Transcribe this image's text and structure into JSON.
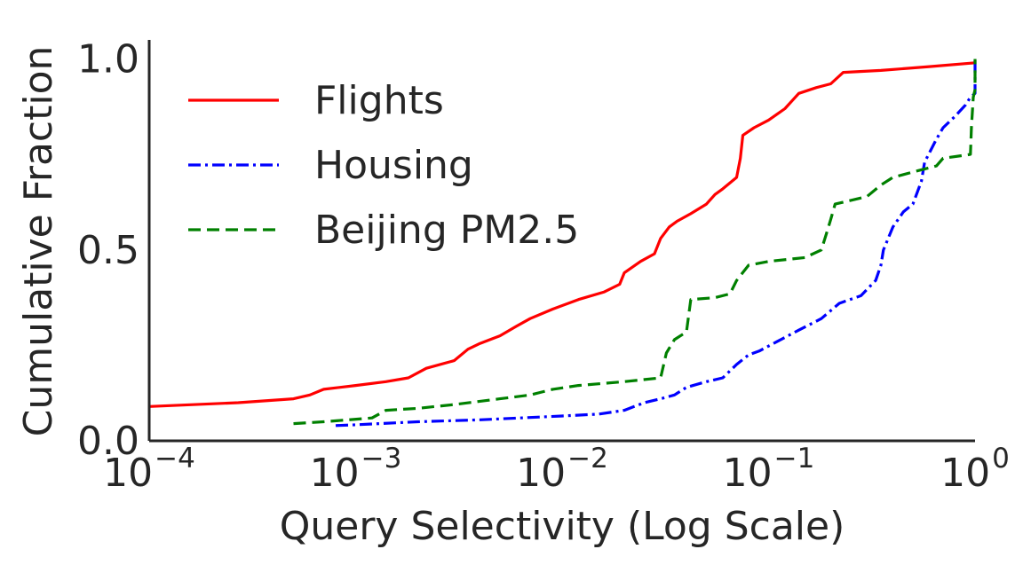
{
  "chart_data": {
    "type": "line",
    "title": "",
    "xlabel": "Query Selectivity (Log Scale)",
    "ylabel": "Cumulative Fraction",
    "xscale": "log",
    "xlim": [
      0.0001,
      1
    ],
    "ylim": [
      0,
      1.05
    ],
    "x_ticks": [
      {
        "value": 0.0001,
        "base": "10",
        "exp": "−4"
      },
      {
        "value": 0.001,
        "base": "10",
        "exp": "−3"
      },
      {
        "value": 0.01,
        "base": "10",
        "exp": "−2"
      },
      {
        "value": 0.1,
        "base": "10",
        "exp": "−1"
      },
      {
        "value": 1,
        "base": "10",
        "exp": "0"
      }
    ],
    "y_ticks": [
      {
        "value": 0.0,
        "label": "0.0"
      },
      {
        "value": 0.5,
        "label": "0.5"
      },
      {
        "value": 1.0,
        "label": "1.0"
      }
    ],
    "grid": false,
    "legend_position": "top-left",
    "series": [
      {
        "name": "Flights",
        "color": "#ff0000",
        "linestyle": "solid",
        "points": [
          [
            0.0001,
            0.09
          ],
          [
            0.00027,
            0.1
          ],
          [
            0.0005,
            0.11
          ],
          [
            0.0006,
            0.12
          ],
          [
            0.0007,
            0.135
          ],
          [
            0.001,
            0.145
          ],
          [
            0.0014,
            0.155
          ],
          [
            0.0018,
            0.165
          ],
          [
            0.0022,
            0.19
          ],
          [
            0.003,
            0.21
          ],
          [
            0.0035,
            0.24
          ],
          [
            0.004,
            0.255
          ],
          [
            0.005,
            0.275
          ],
          [
            0.006,
            0.3
          ],
          [
            0.007,
            0.32
          ],
          [
            0.009,
            0.345
          ],
          [
            0.012,
            0.37
          ],
          [
            0.016,
            0.39
          ],
          [
            0.019,
            0.41
          ],
          [
            0.02,
            0.44
          ],
          [
            0.024,
            0.47
          ],
          [
            0.028,
            0.49
          ],
          [
            0.03,
            0.53
          ],
          [
            0.033,
            0.56
          ],
          [
            0.036,
            0.575
          ],
          [
            0.042,
            0.595
          ],
          [
            0.05,
            0.62
          ],
          [
            0.055,
            0.645
          ],
          [
            0.06,
            0.66
          ],
          [
            0.07,
            0.69
          ],
          [
            0.073,
            0.74
          ],
          [
            0.075,
            0.8
          ],
          [
            0.085,
            0.82
          ],
          [
            0.1,
            0.84
          ],
          [
            0.12,
            0.87
          ],
          [
            0.14,
            0.91
          ],
          [
            0.17,
            0.925
          ],
          [
            0.2,
            0.935
          ],
          [
            0.23,
            0.965
          ],
          [
            0.35,
            0.97
          ],
          [
            0.6,
            0.98
          ],
          [
            1.0,
            0.99
          ]
        ]
      },
      {
        "name": "Housing",
        "color": "#0000ff",
        "linestyle": "dashdot",
        "points": [
          [
            0.0008,
            0.04
          ],
          [
            0.001,
            0.042
          ],
          [
            0.002,
            0.05
          ],
          [
            0.004,
            0.055
          ],
          [
            0.01,
            0.065
          ],
          [
            0.015,
            0.07
          ],
          [
            0.02,
            0.08
          ],
          [
            0.025,
            0.1
          ],
          [
            0.03,
            0.11
          ],
          [
            0.035,
            0.12
          ],
          [
            0.04,
            0.14
          ],
          [
            0.05,
            0.155
          ],
          [
            0.06,
            0.165
          ],
          [
            0.07,
            0.2
          ],
          [
            0.08,
            0.225
          ],
          [
            0.09,
            0.235
          ],
          [
            0.11,
            0.26
          ],
          [
            0.14,
            0.29
          ],
          [
            0.18,
            0.32
          ],
          [
            0.22,
            0.36
          ],
          [
            0.28,
            0.38
          ],
          [
            0.33,
            0.42
          ],
          [
            0.35,
            0.46
          ],
          [
            0.36,
            0.5
          ],
          [
            0.4,
            0.56
          ],
          [
            0.45,
            0.6
          ],
          [
            0.5,
            0.62
          ],
          [
            0.55,
            0.68
          ],
          [
            0.57,
            0.73
          ],
          [
            0.65,
            0.79
          ],
          [
            0.7,
            0.82
          ],
          [
            0.8,
            0.85
          ],
          [
            0.9,
            0.88
          ],
          [
            0.95,
            0.9
          ],
          [
            1.0,
            0.91
          ],
          [
            1.0,
            1.0
          ]
        ]
      },
      {
        "name": "Beijing PM2.5",
        "color": "#008000",
        "linestyle": "dashed",
        "points": [
          [
            0.0005,
            0.045
          ],
          [
            0.0007,
            0.05
          ],
          [
            0.0012,
            0.06
          ],
          [
            0.0014,
            0.08
          ],
          [
            0.002,
            0.085
          ],
          [
            0.003,
            0.095
          ],
          [
            0.005,
            0.11
          ],
          [
            0.007,
            0.12
          ],
          [
            0.009,
            0.135
          ],
          [
            0.012,
            0.145
          ],
          [
            0.02,
            0.155
          ],
          [
            0.03,
            0.165
          ],
          [
            0.032,
            0.23
          ],
          [
            0.035,
            0.265
          ],
          [
            0.04,
            0.285
          ],
          [
            0.042,
            0.37
          ],
          [
            0.055,
            0.375
          ],
          [
            0.065,
            0.385
          ],
          [
            0.07,
            0.42
          ],
          [
            0.08,
            0.46
          ],
          [
            0.1,
            0.47
          ],
          [
            0.15,
            0.48
          ],
          [
            0.18,
            0.5
          ],
          [
            0.19,
            0.54
          ],
          [
            0.2,
            0.58
          ],
          [
            0.21,
            0.62
          ],
          [
            0.3,
            0.64
          ],
          [
            0.35,
            0.67
          ],
          [
            0.4,
            0.69
          ],
          [
            0.55,
            0.71
          ],
          [
            0.65,
            0.72
          ],
          [
            0.7,
            0.74
          ],
          [
            0.95,
            0.75
          ],
          [
            0.96,
            0.82
          ],
          [
            0.98,
            0.9
          ],
          [
            1.0,
            0.92
          ],
          [
            1.0,
            1.0
          ]
        ]
      }
    ]
  }
}
